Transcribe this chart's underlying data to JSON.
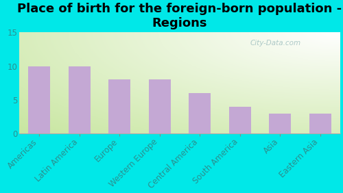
{
  "title": "Place of birth for the foreign-born population -\nRegions",
  "categories": [
    "Americas",
    "Latin America",
    "Europe",
    "Western Europe",
    "Central America",
    "South America",
    "Asia",
    "Eastern Asia"
  ],
  "values": [
    10,
    10,
    8,
    8,
    6,
    4,
    3,
    3
  ],
  "bar_color": "#c4a8d4",
  "background_color": "#00e8e8",
  "gradient_green": [
    200,
    230,
    160
  ],
  "gradient_white": [
    255,
    255,
    255
  ],
  "ylim": [
    0,
    15
  ],
  "yticks": [
    0,
    5,
    10,
    15
  ],
  "title_fontsize": 13,
  "tick_fontsize": 8.5,
  "label_color": "#2a9090",
  "watermark_text": "City-Data.com",
  "watermark_color": "#a0c0c0"
}
